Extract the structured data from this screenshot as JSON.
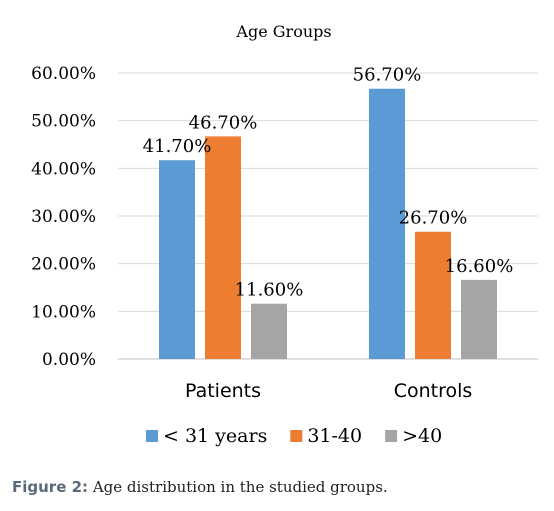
{
  "chart_data": {
    "type": "bar",
    "title": "Age Groups",
    "categories": [
      "Patients",
      "Controls"
    ],
    "series": [
      {
        "name": "< 31 years",
        "color": "#5b9bd5",
        "values": [
          41.7,
          56.7
        ],
        "labels": [
          "41.70%",
          "56.70%"
        ]
      },
      {
        "name": "31-40",
        "color": "#ed7d31",
        "values": [
          46.7,
          26.7
        ],
        "labels": [
          "46.70%",
          "26.70%"
        ]
      },
      {
        "name": ">40",
        "color": "#a5a5a5",
        "values": [
          11.6,
          16.6
        ],
        "labels": [
          "11.60%",
          "16.60%"
        ]
      }
    ],
    "yticks": [
      "0.00%",
      "10.00%",
      "20.00%",
      "30.00%",
      "40.00%",
      "50.00%",
      "60.00%"
    ],
    "ylim": [
      0,
      60
    ],
    "grid": true,
    "legend_position": "bottom"
  },
  "caption": {
    "label": "Figure 2:",
    "text": " Age distribution in the studied groups."
  }
}
